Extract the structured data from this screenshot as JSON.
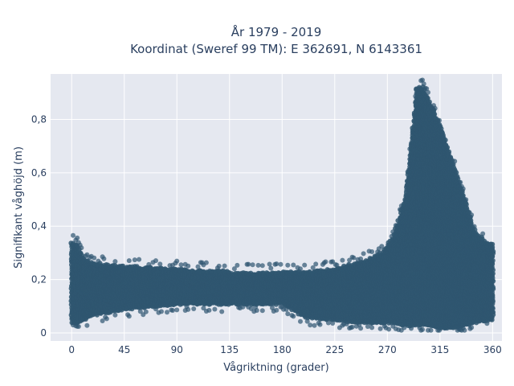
{
  "chart_data": {
    "type": "scatter",
    "title_line1": "År 1979 - 2019",
    "title_line2": "Koordinat (Sweref 99 TM): E 362691, N 6143361",
    "xlabel": "Vågriktning (grader)",
    "ylabel": "Signifikant våghöjd (m)",
    "xlim": [
      -18,
      368
    ],
    "ylim": [
      -0.03,
      0.97
    ],
    "xticks": [
      0,
      45,
      90,
      135,
      180,
      225,
      270,
      315,
      360
    ],
    "yticks": [
      0,
      0.2,
      0.4,
      0.6,
      0.8
    ],
    "ytick_labels": [
      "0",
      "0,2",
      "0,4",
      "0,6",
      "0,8"
    ],
    "grid": true,
    "legend": false,
    "colors": {
      "marker": "#2f5670",
      "plot_bg": "#e5e8f0",
      "grid": "#ffffff",
      "text": "#2a3f5f"
    },
    "envelope": {
      "description": "band of significant wave height vs wave direction",
      "x": [
        0,
        5,
        10,
        20,
        45,
        90,
        135,
        180,
        200,
        225,
        250,
        265,
        275,
        285,
        290,
        295,
        300,
        305,
        315,
        325,
        335,
        345,
        355,
        360
      ],
      "y_low": [
        0.04,
        0.04,
        0.05,
        0.07,
        0.09,
        0.11,
        0.11,
        0.11,
        0.06,
        0.05,
        0.04,
        0.04,
        0.04,
        0.03,
        0.03,
        0.03,
        0.03,
        0.03,
        0.02,
        0.02,
        0.03,
        0.04,
        0.05,
        0.05
      ],
      "y_high": [
        0.34,
        0.33,
        0.28,
        0.26,
        0.25,
        0.24,
        0.23,
        0.23,
        0.23,
        0.24,
        0.27,
        0.3,
        0.36,
        0.5,
        0.7,
        0.92,
        0.92,
        0.88,
        0.78,
        0.65,
        0.52,
        0.38,
        0.34,
        0.33
      ]
    }
  }
}
